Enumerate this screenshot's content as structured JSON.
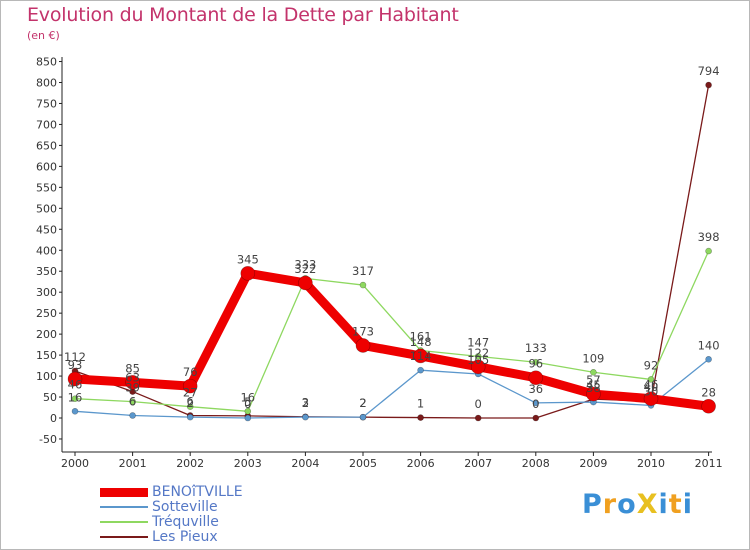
{
  "header": {
    "title": "Evolution du Montant de la Dette par Habitant",
    "unit": "(en €)"
  },
  "branding": {
    "logo_text": "ProXiti"
  },
  "chart_data": {
    "type": "line",
    "title": "Evolution du Montant de la Dette par Habitant",
    "subtitle": "(en €)",
    "xlabel": "",
    "ylabel": "",
    "x": [
      "2000",
      "2001",
      "2002",
      "2003",
      "2004",
      "2005",
      "2006",
      "2007",
      "2008",
      "2009",
      "2010",
      "2011"
    ],
    "ylim": [
      -50,
      850
    ],
    "yticks": [
      -50,
      0,
      50,
      100,
      150,
      200,
      250,
      300,
      350,
      400,
      450,
      500,
      550,
      600,
      650,
      700,
      750,
      800,
      850
    ],
    "grid": false,
    "legend_position": "bottom-left",
    "series": [
      {
        "name": "Les Pieux",
        "color": "#7a1a1a",
        "values": [
          112,
          63,
          6,
          5,
          3,
          2,
          1,
          0,
          0,
          45,
          40,
          794
        ],
        "labels": [
          "112",
          "63",
          "6",
          "5",
          "3",
          "2",
          "1",
          "0",
          "0",
          "45",
          "40",
          "794"
        ]
      },
      {
        "name": "Tréquville",
        "color": "#8ed860",
        "values": [
          46,
          39,
          27,
          16,
          333,
          317,
          161,
          147,
          133,
          109,
          92,
          398
        ],
        "labels": [
          "46",
          "39",
          "27",
          "16",
          "333",
          "317",
          "161",
          "147",
          "133",
          "109",
          "92",
          "398"
        ]
      },
      {
        "name": "Sotteville",
        "color": "#5b97cc",
        "values": [
          16,
          6,
          2,
          0,
          2,
          2,
          114,
          105,
          36,
          38,
          30,
          140
        ],
        "labels": [
          "16",
          "6",
          "2",
          "0",
          "2",
          "2",
          "114",
          "105",
          "36",
          "38",
          "30",
          "140"
        ]
      },
      {
        "name": "BENOîTVILLE",
        "color": "#ee0000",
        "values": [
          93,
          85,
          76,
          345,
          322,
          173,
          148,
          122,
          96,
          57,
          46,
          28
        ],
        "labels": [
          "93",
          "85",
          "76",
          "345",
          "322",
          "173",
          "148",
          "122",
          "96",
          "57",
          "46",
          "28"
        ]
      }
    ],
    "legend": [
      "BENOîTVILLE",
      "Sotteville",
      "Tréquville",
      "Les Pieux"
    ]
  }
}
